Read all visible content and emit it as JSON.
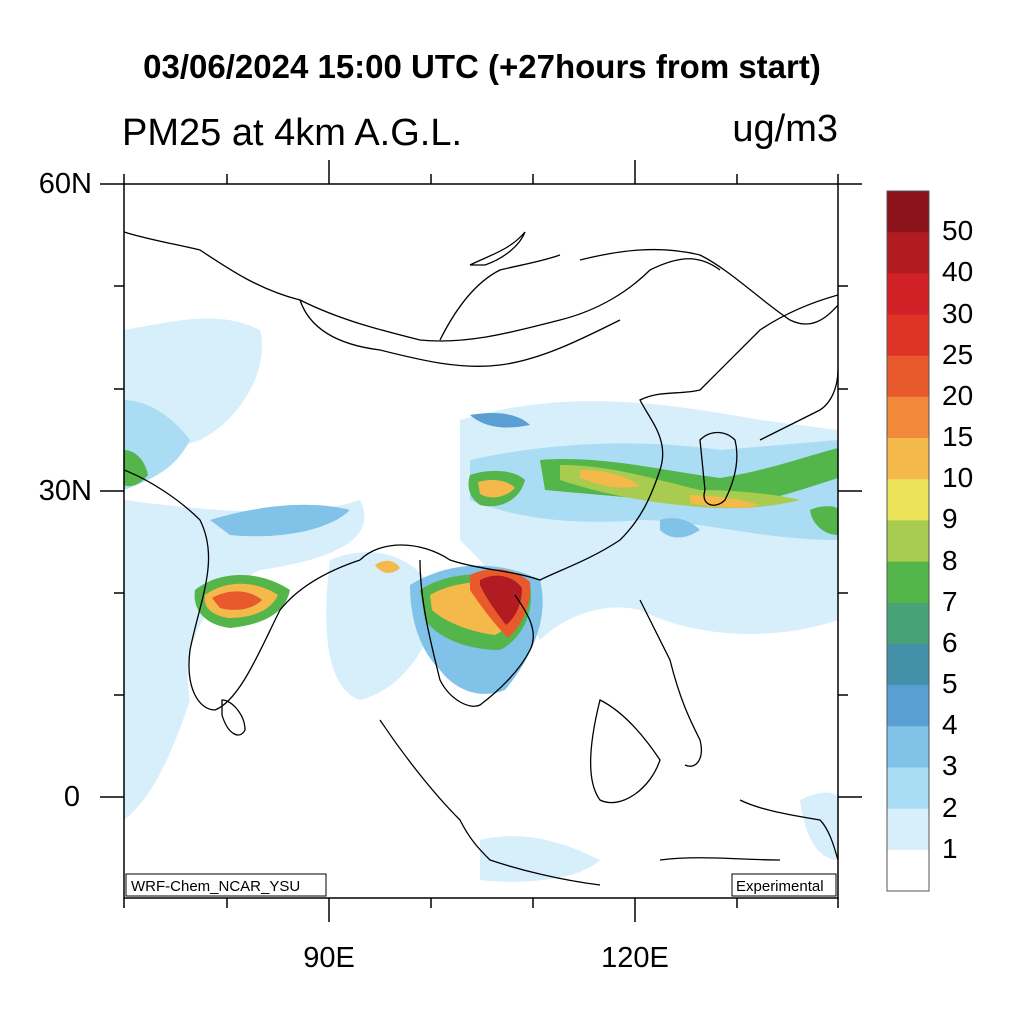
{
  "title": "03/06/2024 15:00 UTC (+27hours from start)",
  "subtitle_left": "PM25 at 4km A.G.L.",
  "subtitle_right": "ug/m3",
  "lat_labels": [
    "60N",
    "30N",
    "0"
  ],
  "lon_labels": [
    "90E",
    "120E"
  ],
  "footer_left": "WRF-Chem_NCAR_YSU",
  "footer_right": "Experimental",
  "colorbar": {
    "labels": [
      "50",
      "40",
      "30",
      "25",
      "20",
      "15",
      "10",
      "9",
      "8",
      "7",
      "6",
      "5",
      "4",
      "3",
      "2",
      "1"
    ],
    "colors": [
      "#8b1319",
      "#b01c22",
      "#d12127",
      "#dd3427",
      "#e85a2c",
      "#f08a3a",
      "#f4b84b",
      "#ebe25a",
      "#a7cc4f",
      "#53b54a",
      "#47a375",
      "#4490a9",
      "#5a9fd4",
      "#80c2e8",
      "#aadcf3",
      "#d7eefb",
      "#ffffff"
    ]
  }
}
